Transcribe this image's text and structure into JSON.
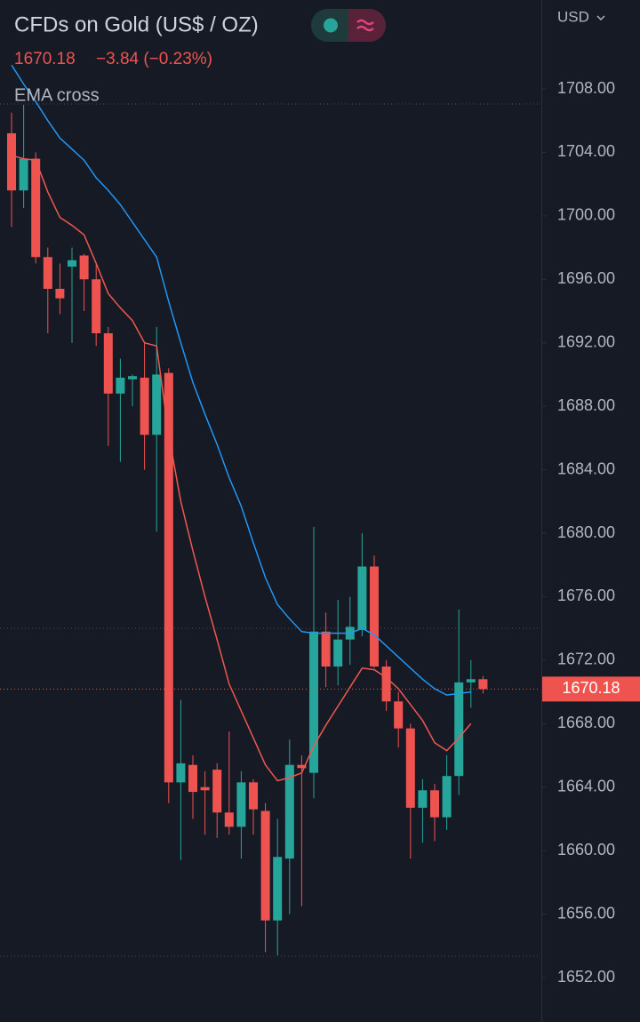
{
  "chart_data": {
    "type": "candlestick",
    "title": "CFDs on Gold (US$ / OZ)",
    "last_price": 1670.18,
    "change": "−3.84 (−0.23%)",
    "indicator": "EMA cross",
    "currency": "USD",
    "up_color": "#26a69a",
    "down_color": "#ef5350",
    "categories": [
      null,
      null,
      null,
      null,
      null,
      null,
      null,
      null,
      null,
      null,
      null,
      null,
      null,
      null,
      null,
      null,
      null,
      null,
      null,
      null,
      null,
      null,
      null,
      null,
      null,
      null,
      null,
      null,
      null,
      null,
      null,
      null,
      null,
      null,
      null,
      null,
      null,
      null,
      null,
      null
    ],
    "open": [
      1705.2,
      1701.6,
      1703.6,
      1697.4,
      1695.4,
      1696.8,
      1697.5,
      1696.0,
      1692.6,
      1688.8,
      1689.7,
      1689.8,
      1686.2,
      1690.1,
      1664.3,
      1665.4,
      1664.0,
      1665.1,
      1662.4,
      1661.5,
      1664.3,
      1662.5,
      1655.6,
      1659.5,
      1665.4,
      1664.9,
      1673.8,
      1671.6,
      1673.3,
      1673.9,
      1677.9,
      1671.6,
      1669.4,
      1667.7,
      1662.7,
      1663.8,
      1662.1,
      1664.7,
      1670.6,
      1670.8
    ],
    "high": [
      1706.5,
      1707.0,
      1704.0,
      1698.0,
      1697.0,
      1698.0,
      1697.6,
      1697.0,
      1693.0,
      1691.0,
      1690.0,
      1692.0,
      1693.0,
      1690.4,
      1669.5,
      1666.0,
      1665.0,
      1665.5,
      1667.5,
      1665.0,
      1664.5,
      1663.0,
      1662.0,
      1667.0,
      1666.0,
      1680.4,
      1675.0,
      1675.8,
      1676.0,
      1680.0,
      1678.6,
      1672.0,
      1670.0,
      1668.0,
      1664.5,
      1664.2,
      1666.0,
      1675.2,
      1672.0,
      1671.0
    ],
    "low": [
      1699.3,
      1700.5,
      1697.0,
      1692.6,
      1693.8,
      1692.0,
      1694.0,
      1691.8,
      1685.5,
      1684.5,
      1688.0,
      1684.0,
      1680.1,
      1663.0,
      1659.4,
      1662.0,
      1661.0,
      1660.8,
      1661.0,
      1659.5,
      1661.0,
      1653.6,
      1653.4,
      1656.0,
      1656.5,
      1663.3,
      1670.3,
      1670.4,
      1671.7,
      1673.5,
      1671.5,
      1668.8,
      1666.5,
      1659.5,
      1660.5,
      1660.6,
      1661.3,
      1663.5,
      1669.0,
      1669.9
    ],
    "close": [
      1701.6,
      1703.6,
      1697.4,
      1695.4,
      1694.8,
      1697.2,
      1696.0,
      1692.6,
      1688.8,
      1689.8,
      1689.9,
      1686.2,
      1690.0,
      1664.3,
      1665.5,
      1663.7,
      1663.8,
      1662.4,
      1661.5,
      1664.3,
      1662.6,
      1655.6,
      1659.6,
      1665.4,
      1665.2,
      1673.8,
      1671.6,
      1673.3,
      1674.1,
      1677.9,
      1671.6,
      1669.4,
      1667.7,
      1662.7,
      1663.8,
      1662.1,
      1664.7,
      1670.6,
      1670.8,
      1670.18
    ],
    "series": [
      {
        "color": "#2196f3",
        "values": [
          1709.5,
          1708.3,
          1707.2,
          1706.0,
          1704.9,
          1704.2,
          1703.5,
          1702.4,
          1701.6,
          1700.7,
          1699.6,
          1698.5,
          1697.4,
          1694.6,
          1692.0,
          1689.5,
          1687.5,
          1685.6,
          1683.5,
          1681.7,
          1679.4,
          1677.2,
          1675.5,
          1674.6,
          1673.8,
          1673.7,
          1673.7,
          1673.7,
          1673.7,
          1674.0,
          1673.6,
          1672.9,
          1672.2,
          1671.5,
          1670.8,
          1670.2,
          1669.8,
          1669.9,
          1670.0,
          null
        ]
      },
      {
        "color": "#f0574f",
        "values": [
          1703.8,
          1703.6,
          1703.5,
          1701.5,
          1699.9,
          1699.4,
          1698.8,
          1697.0,
          1695.1,
          1694.2,
          1693.4,
          1692.0,
          1691.8,
          1686.2,
          1682.0,
          1678.9,
          1676.0,
          1673.3,
          1670.5,
          1668.8,
          1667.1,
          1665.4,
          1664.4,
          1664.6,
          1664.9,
          1666.6,
          1667.9,
          1669.1,
          1670.3,
          1671.5,
          1671.4,
          1670.9,
          1670.2,
          1669.2,
          1668.2,
          1666.8,
          1666.3,
          1667.1,
          1668.0,
          null
        ]
      }
    ],
    "ylim": [
      1649.2,
      1713.6
    ],
    "yticks": [
      {
        "value": 1652,
        "label": "1652.00"
      },
      {
        "value": 1656,
        "label": "1656.00"
      },
      {
        "value": 1660,
        "label": "1660.00"
      },
      {
        "value": 1664,
        "label": "1664.00"
      },
      {
        "value": 1668,
        "label": "1668.00"
      },
      {
        "value": 1672,
        "label": "1672.00"
      },
      {
        "value": 1676,
        "label": "1676.00"
      },
      {
        "value": 1680,
        "label": "1680.00"
      },
      {
        "value": 1684,
        "label": "1684.00"
      },
      {
        "value": 1688,
        "label": "1688.00"
      },
      {
        "value": 1692,
        "label": "1692.00"
      },
      {
        "value": 1696,
        "label": "1696.00"
      },
      {
        "value": 1700,
        "label": "1700.00"
      },
      {
        "value": 1704,
        "label": "1704.00"
      },
      {
        "value": 1708,
        "label": "1708.00"
      }
    ]
  }
}
